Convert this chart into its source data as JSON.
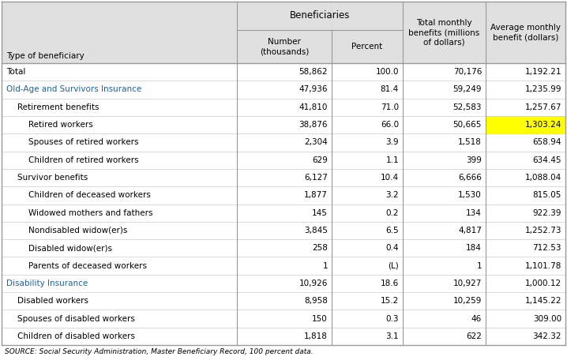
{
  "rows": [
    {
      "label": "Total",
      "indent": 0,
      "number": "58,862",
      "percent": "100.0",
      "total_monthly": "70,176",
      "avg_monthly": "1,192.21",
      "highlight": false,
      "blue": false
    },
    {
      "label": "Old-Age and Survivors Insurance",
      "indent": 0,
      "number": "47,936",
      "percent": "81.4",
      "total_monthly": "59,249",
      "avg_monthly": "1,235.99",
      "highlight": false,
      "blue": true
    },
    {
      "label": "Retirement benefits",
      "indent": 1,
      "number": "41,810",
      "percent": "71.0",
      "total_monthly": "52,583",
      "avg_monthly": "1,257.67",
      "highlight": false,
      "blue": false
    },
    {
      "label": "Retired workers",
      "indent": 2,
      "number": "38,876",
      "percent": "66.0",
      "total_monthly": "50,665",
      "avg_monthly": "1,303.24",
      "highlight": true,
      "blue": false
    },
    {
      "label": "Spouses of retired workers",
      "indent": 2,
      "number": "2,304",
      "percent": "3.9",
      "total_monthly": "1,518",
      "avg_monthly": "658.94",
      "highlight": false,
      "blue": false
    },
    {
      "label": "Children of retired workers",
      "indent": 2,
      "number": "629",
      "percent": "1.1",
      "total_monthly": "399",
      "avg_monthly": "634.45",
      "highlight": false,
      "blue": false
    },
    {
      "label": "Survivor benefits",
      "indent": 1,
      "number": "6,127",
      "percent": "10.4",
      "total_monthly": "6,666",
      "avg_monthly": "1,088.04",
      "highlight": false,
      "blue": false
    },
    {
      "label": "Children of deceased workers",
      "indent": 2,
      "number": "1,877",
      "percent": "3.2",
      "total_monthly": "1,530",
      "avg_monthly": "815.05",
      "highlight": false,
      "blue": false
    },
    {
      "label": "Widowed mothers and fathers",
      "indent": 2,
      "number": "145",
      "percent": "0.2",
      "total_monthly": "134",
      "avg_monthly": "922.39",
      "highlight": false,
      "blue": false
    },
    {
      "label": "Nondisabled widow(er)s",
      "indent": 2,
      "number": "3,845",
      "percent": "6.5",
      "total_monthly": "4,817",
      "avg_monthly": "1,252.73",
      "highlight": false,
      "blue": false
    },
    {
      "label": "Disabled widow(er)s",
      "indent": 2,
      "number": "258",
      "percent": "0.4",
      "total_monthly": "184",
      "avg_monthly": "712.53",
      "highlight": false,
      "blue": false
    },
    {
      "label": "Parents of deceased workers",
      "indent": 2,
      "number": "1",
      "percent": "(L)",
      "total_monthly": "1",
      "avg_monthly": "1,101.78",
      "highlight": false,
      "blue": false
    },
    {
      "label": "Disability Insurance",
      "indent": 0,
      "number": "10,926",
      "percent": "18.6",
      "total_monthly": "10,927",
      "avg_monthly": "1,000.12",
      "highlight": false,
      "blue": true
    },
    {
      "label": "Disabled workers",
      "indent": 1,
      "number": "8,958",
      "percent": "15.2",
      "total_monthly": "10,259",
      "avg_monthly": "1,145.22",
      "highlight": false,
      "blue": false
    },
    {
      "label": "Spouses of disabled workers",
      "indent": 1,
      "number": "150",
      "percent": "0.3",
      "total_monthly": "46",
      "avg_monthly": "309.00",
      "highlight": false,
      "blue": false
    },
    {
      "label": "Children of disabled workers",
      "indent": 1,
      "number": "1,818",
      "percent": "3.1",
      "total_monthly": "622",
      "avg_monthly": "342.32",
      "highlight": false,
      "blue": false
    }
  ],
  "header_bg": "#e0e0e0",
  "blue_text": "#2060a0",
  "highlight_color": "#ffff00",
  "source_text": "SOURCE: Social Security Administration, Master Beneficiary Record, 100 percent data.",
  "fig_bg": "#ffffff",
  "border_color": "#999999",
  "row_line_color": "#cccccc",
  "font_size": 7.5,
  "header_font_size": 7.5,
  "bene_header_font_size": 8.5
}
